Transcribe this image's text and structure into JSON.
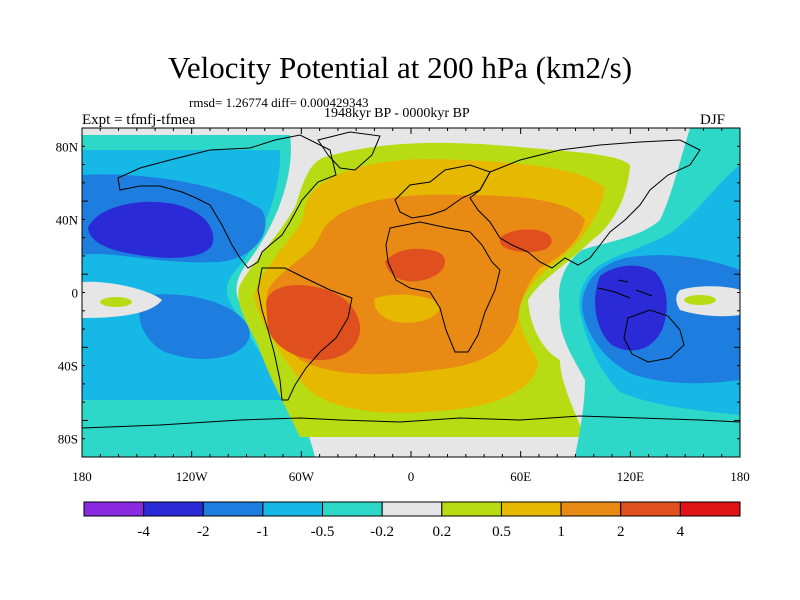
{
  "header": {
    "title": "Velocity Potential at 200 hPa (km2/s)",
    "subtitle_left": "rmsd= 1.26774 diff= 0.000429343",
    "subtitle_center": "1948kyr BP - 0000kyr BP",
    "experiment": "Expt = tfmfj-tfmea",
    "season": "DJF"
  },
  "axes": {
    "lat_labels": [
      "80N",
      "40N",
      "0",
      "40S",
      "80S"
    ],
    "lon_labels": [
      "180",
      "120W",
      "60W",
      "0",
      "60E",
      "120E",
      "180"
    ]
  },
  "colorbar": {
    "levels": [
      "-4",
      "-2",
      "-1",
      "-0.5",
      "-0.2",
      "0.2",
      "0.5",
      "1",
      "2",
      "4"
    ],
    "colors": [
      "#8a2be2",
      "#2a2ad6",
      "#1e7ee0",
      "#16b8e6",
      "#2ed8c8",
      "#e6e6e6",
      "#b8dc14",
      "#e6b800",
      "#e88a14",
      "#e0501e",
      "#e01414"
    ]
  },
  "palette": {
    "darkblue": "#2a2ad6",
    "blue": "#1e7ee0",
    "lightblue": "#16b8e6",
    "cyan": "#2ed8c8",
    "gray": "#e6e6e6",
    "yellowgreen": "#b8dc14",
    "yellow": "#e6b800",
    "orange": "#e88a14",
    "redorange": "#e0501e"
  }
}
